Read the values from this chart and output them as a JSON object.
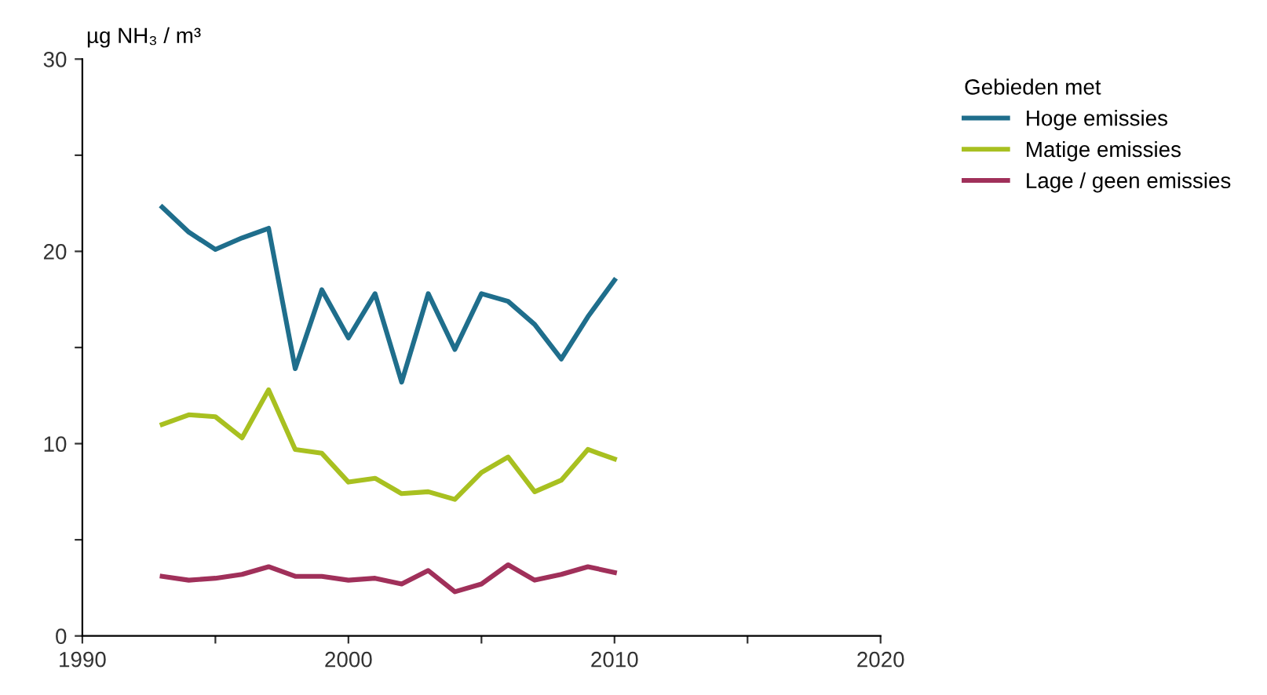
{
  "chart_data": {
    "type": "line",
    "ylabel": "µg NH₃ / m³",
    "legend_title": "Gebieden met",
    "legend": "right",
    "x": [
      1993,
      1994,
      1995,
      1996,
      1997,
      1998,
      1999,
      2000,
      2001,
      2002,
      2003,
      2004,
      2005,
      2006,
      2007,
      2008,
      2009,
      2010
    ],
    "series": [
      {
        "name": "Hoge emissies",
        "color": "#1f6e8c",
        "values": [
          22.3,
          21,
          20.1,
          20.7,
          21.2,
          13.9,
          18,
          15.5,
          17.8,
          13.2,
          17.8,
          14.9,
          17.8,
          17.4,
          16.2,
          14.4,
          16.6,
          18.5
        ]
      },
      {
        "name": "Matige emissies",
        "color": "#a8c020",
        "values": [
          11,
          11.5,
          11.4,
          10.3,
          12.8,
          9.7,
          9.5,
          8.0,
          8.2,
          7.4,
          7.5,
          7.1,
          8.5,
          9.3,
          7.5,
          8.1,
          9.7,
          9.2
        ]
      },
      {
        "name": "Lage / geen emissies",
        "color": "#a0305a",
        "values": [
          3.1,
          2.9,
          3.0,
          3.2,
          3.6,
          3.1,
          3.1,
          2.9,
          3.0,
          2.7,
          3.4,
          2.3,
          2.7,
          3.7,
          2.9,
          3.2,
          3.6,
          3.3
        ]
      }
    ],
    "xlim": [
      1990,
      2020
    ],
    "xticks": [
      1990,
      {
        "value": 1995,
        "label": null
      },
      2000,
      {
        "value": 2005,
        "label": null
      },
      2010,
      {
        "value": 2015,
        "label": null
      },
      2020
    ],
    "ylim": [
      0,
      30
    ],
    "yticks": [
      0,
      {
        "value": 5,
        "label": null
      },
      10,
      {
        "value": 15,
        "label": null
      },
      20,
      {
        "value": 25,
        "label": null
      },
      30
    ],
    "grid": false,
    "line_style": "solid"
  }
}
